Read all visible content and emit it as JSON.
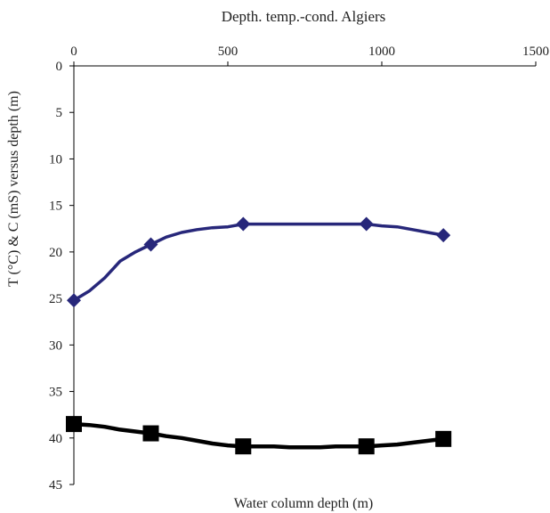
{
  "chart_data": {
    "type": "line",
    "title": "Depth. temp.-cond. Algiers",
    "xlabel": "Water column depth (m)",
    "ylabel": "T (°C) & C (mS) versus depth (m)",
    "xlim": [
      0,
      1500
    ],
    "ylim": [
      0,
      45
    ],
    "x_axis_position": "top",
    "y_axis_inverted": true,
    "xticks": [
      0,
      500,
      1000,
      1500
    ],
    "yticks": [
      0,
      5,
      10,
      15,
      20,
      25,
      30,
      35,
      40,
      45
    ],
    "grid": false,
    "legend": "none",
    "series": [
      {
        "marker": "diamond",
        "color": "#27277a",
        "markers": {
          "x": [
            0,
            250,
            550,
            950,
            1200
          ],
          "y": [
            25.2,
            19.2,
            17.0,
            17.0,
            18.2
          ]
        },
        "curve": {
          "x": [
            0,
            50,
            100,
            150,
            200,
            250,
            300,
            350,
            400,
            450,
            500,
            550,
            600,
            700,
            800,
            900,
            950,
            1000,
            1050,
            1100,
            1150,
            1200
          ],
          "y": [
            25.2,
            24.2,
            22.8,
            21.0,
            20.0,
            19.2,
            18.4,
            17.9,
            17.6,
            17.4,
            17.3,
            17.0,
            17.0,
            17.0,
            17.0,
            17.0,
            17.0,
            17.2,
            17.3,
            17.6,
            17.9,
            18.2
          ]
        }
      },
      {
        "marker": "square",
        "color": "#000000",
        "markers": {
          "x": [
            0,
            250,
            550,
            950,
            1200
          ],
          "y": [
            38.5,
            39.5,
            40.9,
            40.9,
            40.1
          ]
        },
        "curve": {
          "x": [
            0,
            50,
            100,
            150,
            200,
            250,
            300,
            350,
            400,
            450,
            500,
            550,
            600,
            650,
            700,
            750,
            800,
            850,
            900,
            950,
            1000,
            1050,
            1100,
            1150,
            1200
          ],
          "y": [
            38.5,
            38.6,
            38.8,
            39.1,
            39.3,
            39.5,
            39.8,
            40.0,
            40.3,
            40.6,
            40.8,
            40.9,
            40.9,
            40.9,
            41.0,
            41.0,
            41.0,
            40.9,
            40.9,
            40.9,
            40.8,
            40.7,
            40.5,
            40.3,
            40.1
          ]
        }
      }
    ]
  }
}
